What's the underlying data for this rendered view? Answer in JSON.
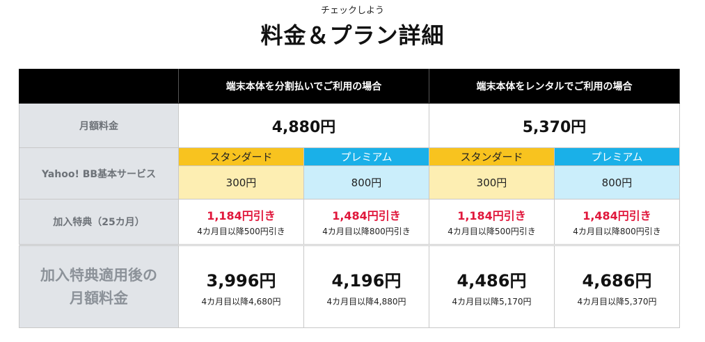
{
  "header": {
    "subtitle": "チェックしよう",
    "title": "料金＆プラン詳細"
  },
  "columns": {
    "split_payment": "端末本体を分割払いでご利用の場合",
    "rental": "端末本体をレンタルでご利用の場合"
  },
  "monthly_fee": {
    "label": "月額料金",
    "split_payment": "4,880円",
    "rental": "5,370円"
  },
  "basic_service": {
    "label": "Yahoo! BB基本サービス",
    "plans": [
      {
        "name": "スタンダード",
        "price": "300円"
      },
      {
        "name": "プレミアム",
        "price": "800円"
      },
      {
        "name": "スタンダード",
        "price": "300円"
      },
      {
        "name": "プレミアム",
        "price": "800円"
      }
    ]
  },
  "benefit": {
    "label": "加入特典（25カ月）",
    "items": [
      {
        "discount": "1,184円引き",
        "note": "4カ月目以降500円引き"
      },
      {
        "discount": "1,484円引き",
        "note": "4カ月目以降800円引き"
      },
      {
        "discount": "1,184円引き",
        "note": "4カ月目以降500円引き"
      },
      {
        "discount": "1,484円引き",
        "note": "4カ月目以降800円引き"
      }
    ]
  },
  "after_benefit": {
    "label_line1": "加入特典適用後の",
    "label_line2": "月額料金",
    "items": [
      {
        "price": "3,996円",
        "note": "4カ月目以降4,680円"
      },
      {
        "price": "4,196円",
        "note": "4カ月目以降4,880円"
      },
      {
        "price": "4,486円",
        "note": "4カ月目以降5,170円"
      },
      {
        "price": "4,686円",
        "note": "4カ月目以降5,370円"
      }
    ]
  },
  "colors": {
    "header_bg": "#000000",
    "label_bg": "#e1e4e8",
    "standard_header": "#f8c31f",
    "standard_value": "#fdeeb2",
    "premium_header": "#1ab0e8",
    "premium_value": "#cbeefb",
    "discount_red": "#e0173b"
  }
}
